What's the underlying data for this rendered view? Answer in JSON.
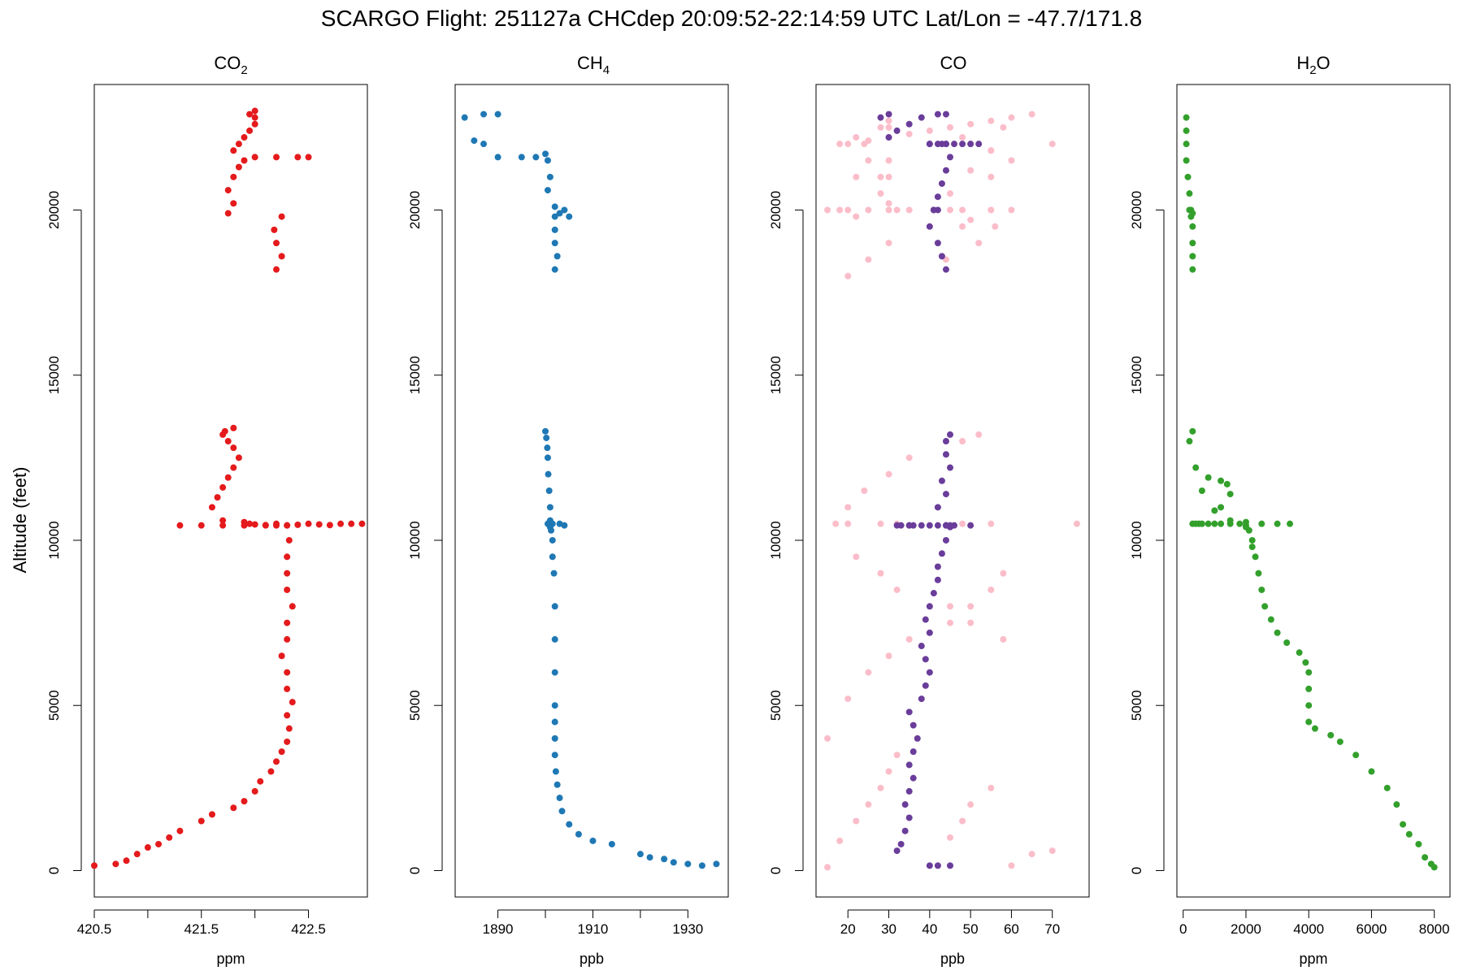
{
  "title": "SCARGO Flight: 251127a  CHCdep  20:09:52-22:14:59 UTC  Lat/Lon = -47.7/171.8",
  "ylabel": "Altitude (feet)",
  "yticks": [
    0,
    5000,
    10000,
    15000,
    20000
  ],
  "chart_data": [
    {
      "type": "scatter",
      "title_main": "CO",
      "title_sub": "2",
      "xlabel": "ppm",
      "xlim": [
        420.5,
        423.05
      ],
      "ylim": [
        -800,
        23800
      ],
      "xticks": [
        420.5,
        421.0,
        421.5,
        422.0,
        422.5
      ],
      "xtick_labels": [
        "420.5",
        "",
        "421.5",
        "",
        "422.5"
      ],
      "series": [
        {
          "color": "#e41a1c",
          "x": [
            420.5,
            420.7,
            420.8,
            420.9,
            421.0,
            421.1,
            421.2,
            421.3,
            421.5,
            421.6,
            421.8,
            421.9,
            422.0,
            422.05,
            422.15,
            422.2,
            422.25,
            422.3,
            422.32,
            422.3,
            422.35,
            422.3,
            422.3,
            422.25,
            422.3,
            422.3,
            422.35,
            422.3,
            422.3,
            422.3,
            422.32,
            421.3,
            421.5,
            421.7,
            421.9,
            422.1,
            422.2,
            422.3,
            421.7,
            421.6,
            421.65,
            421.7,
            421.75,
            421.8,
            421.85,
            421.8,
            421.75,
            421.7,
            421.72,
            421.8,
            421.9,
            421.95,
            422.0,
            422.1,
            422.2,
            422.3,
            422.4,
            422.5,
            422.6,
            422.7,
            422.8,
            422.9,
            423.0,
            422.2,
            422.25,
            422.2,
            422.18,
            422.25,
            421.75,
            421.8,
            421.75,
            421.8,
            421.85,
            421.9,
            422.0,
            422.2,
            422.4,
            422.5,
            421.8,
            421.85,
            421.9,
            421.95,
            422.0,
            422.0,
            421.95,
            422.0
          ],
          "y": [
            150,
            200,
            300,
            500,
            700,
            800,
            1000,
            1200,
            1500,
            1700,
            1900,
            2100,
            2400,
            2700,
            3000,
            3300,
            3600,
            3900,
            4300,
            4700,
            5100,
            5500,
            6000,
            6500,
            7000,
            7500,
            8000,
            8500,
            9000,
            9500,
            10000,
            10450,
            10450,
            10450,
            10450,
            10450,
            10450,
            10450,
            10600,
            11000,
            11300,
            11600,
            11900,
            12200,
            12500,
            12800,
            13000,
            13200,
            13300,
            13400,
            10550,
            10500,
            10480,
            10460,
            10500,
            10450,
            10470,
            10500,
            10480,
            10460,
            10500,
            10500,
            10500,
            18200,
            18600,
            19000,
            19400,
            19800,
            19900,
            20200,
            20600,
            21000,
            21300,
            21500,
            21600,
            21600,
            21600,
            21600,
            21800,
            22000,
            22200,
            22400,
            22600,
            22800,
            22900,
            23000
          ]
        }
      ]
    },
    {
      "type": "scatter",
      "title_main": "CH",
      "title_sub": "4",
      "xlabel": "ppb",
      "xlim": [
        1881,
        1938.5
      ],
      "ylim": [
        -800,
        23800
      ],
      "xticks": [
        1890,
        1900,
        1910,
        1920,
        1930
      ],
      "xtick_labels": [
        "1890",
        "",
        "1910",
        "",
        "1930"
      ],
      "series": [
        {
          "color": "#1f78b4",
          "x": [
            1936,
            1933,
            1930,
            1927,
            1925,
            1922,
            1920,
            1914,
            1910,
            1907,
            1905,
            1903.5,
            1903,
            1902.5,
            1902.2,
            1902,
            1902,
            1902,
            1902,
            1902,
            1902,
            1902,
            1901.8,
            1901.5,
            1901.5,
            1901.2,
            1901,
            1900.5,
            1901.5,
            1903,
            1904,
            1901,
            1901,
            1900.8,
            1900.6,
            1900.5,
            1900.4,
            1900.2,
            1900,
            1902,
            1902.5,
            1902,
            1902,
            1902,
            1903,
            1905,
            1904,
            1902,
            1900.5,
            1901,
            1900.5,
            1900,
            1898,
            1895,
            1890,
            1887,
            1885,
            1883,
            1887,
            1890
          ],
          "y": [
            200,
            150,
            200,
            250,
            350,
            400,
            500,
            800,
            900,
            1100,
            1400,
            1800,
            2200,
            2600,
            3000,
            3500,
            4000,
            4500,
            5000,
            6000,
            7000,
            8000,
            9000,
            9500,
            10000,
            10300,
            10400,
            10500,
            10500,
            10500,
            10450,
            10600,
            11000,
            11500,
            12000,
            12500,
            12800,
            13100,
            13300,
            18200,
            18600,
            19000,
            19400,
            19800,
            19900,
            19800,
            20000,
            20100,
            20600,
            21000,
            21500,
            21700,
            21600,
            21600,
            21600,
            22000,
            22100,
            22800,
            22900,
            22900
          ]
        }
      ]
    },
    {
      "type": "scatter",
      "title_main": "CO",
      "title_sub": "",
      "xlabel": "ppb",
      "xlim": [
        12.2,
        79
      ],
      "ylim": [
        -800,
        23800
      ],
      "xticks": [
        20,
        30,
        40,
        50,
        60,
        70
      ],
      "xtick_labels": [
        "20",
        "30",
        "40",
        "50",
        "60",
        "70"
      ],
      "series": [
        {
          "name": "",
          "color": "#fbbdc9",
          "x": [
            15,
            18,
            22,
            25,
            28,
            30,
            32,
            45,
            48,
            50,
            55,
            60,
            65,
            70,
            15,
            20,
            25,
            30,
            35,
            45,
            50,
            55,
            58,
            17,
            20,
            28,
            32,
            48,
            55,
            76,
            20,
            24,
            30,
            35,
            48,
            52,
            22,
            28,
            32,
            45,
            50,
            58,
            20,
            25,
            30,
            48,
            55,
            18,
            22,
            50,
            56,
            30,
            45,
            28,
            50,
            30,
            55,
            20,
            25,
            30,
            35,
            40,
            45,
            50,
            55,
            60,
            65,
            70,
            22,
            25,
            28,
            32,
            48,
            55,
            60,
            18,
            22,
            28,
            30,
            50,
            55,
            15,
            20,
            25,
            30,
            35,
            45,
            55,
            60,
            24,
            30,
            48,
            58,
            30,
            44,
            52
          ],
          "y": [
            100,
            900,
            1500,
            2000,
            2500,
            3000,
            3500,
            1000,
            1500,
            2000,
            2500,
            150,
            500,
            600,
            4000,
            5200,
            6000,
            6500,
            7000,
            7500,
            8000,
            8500,
            9000,
            10500,
            10500,
            10500,
            10500,
            10500,
            10500,
            10500,
            11000,
            11500,
            12000,
            12500,
            13000,
            13200,
            9500,
            9000,
            8500,
            8000,
            7500,
            7000,
            18000,
            18500,
            19000,
            19500,
            20000,
            20000,
            19800,
            19700,
            19500,
            20200,
            20500,
            21000,
            21200,
            21500,
            21800,
            22000,
            22100,
            22200,
            22300,
            22400,
            22500,
            22600,
            22700,
            22800,
            22900,
            22000,
            21000,
            21500,
            20500,
            20000,
            20000,
            21000,
            21500,
            22000,
            22200,
            22500,
            22700,
            22000,
            21800,
            20000,
            20000,
            20000,
            20000,
            20000,
            20000,
            20000,
            20000,
            22000,
            22500,
            22200,
            22500,
            21000,
            18500,
            19000
          ]
        },
        {
          "name": "",
          "color": "#6a3d9a",
          "x": [
            40,
            42,
            45,
            32,
            33,
            34,
            35,
            34,
            35,
            36,
            35,
            36,
            37,
            36,
            35,
            38,
            39,
            40,
            39,
            38,
            40,
            39,
            40,
            41,
            42,
            42,
            43,
            44,
            45,
            44,
            45,
            46,
            44,
            42,
            40,
            38,
            36,
            35,
            33,
            32,
            35,
            50,
            42,
            44,
            43,
            45,
            44,
            44,
            45,
            44,
            43,
            42,
            40,
            41,
            42,
            41,
            42,
            43,
            44,
            45,
            44,
            40,
            40,
            43,
            42,
            44,
            46,
            48,
            50,
            52,
            30,
            32,
            35,
            38,
            28,
            30,
            42,
            44
          ],
          "y": [
            150,
            150,
            150,
            600,
            800,
            1200,
            1600,
            2000,
            2400,
            2800,
            3200,
            3600,
            4000,
            4400,
            4800,
            5200,
            5600,
            6000,
            6400,
            6800,
            7200,
            7600,
            8000,
            8400,
            8800,
            9200,
            9600,
            10000,
            10400,
            10450,
            10450,
            10450,
            10450,
            10450,
            10450,
            10450,
            10450,
            10450,
            10450,
            10450,
            10450,
            10450,
            11000,
            11400,
            11800,
            12200,
            12600,
            13000,
            13200,
            18200,
            18600,
            19000,
            19500,
            20000,
            20000,
            20000,
            20400,
            20800,
            21200,
            21600,
            22000,
            22000,
            22000,
            22000,
            22000,
            22000,
            22000,
            22000,
            22000,
            22000,
            22200,
            22400,
            22600,
            22800,
            22800,
            22900,
            22900,
            22900
          ]
        }
      ]
    },
    {
      "type": "scatter",
      "title_main": "H",
      "title_sub": "2",
      "title_tail": "O",
      "xlabel": "ppm",
      "xlim": [
        -200,
        8500
      ],
      "ylim": [
        -800,
        23800
      ],
      "xticks": [
        0,
        2000,
        4000,
        6000,
        8000
      ],
      "xtick_labels": [
        "0",
        "2000",
        "4000",
        "6000",
        "8000"
      ],
      "series": [
        {
          "color": "#33a02c",
          "x": [
            8000,
            7900,
            7700,
            7500,
            7200,
            7000,
            6800,
            6500,
            6000,
            5500,
            5000,
            4700,
            4200,
            4000,
            4000,
            4000,
            4000,
            3900,
            3700,
            3300,
            3000,
            2800,
            2600,
            2500,
            2400,
            2300,
            2200,
            2200,
            2100,
            2000,
            2000,
            1800,
            1500,
            1200,
            1000,
            800,
            600,
            500,
            400,
            300,
            2000,
            2500,
            3000,
            3400,
            1500,
            1000,
            600,
            400,
            200,
            1200,
            1500,
            1400,
            1200,
            800,
            300,
            300,
            300,
            300,
            300,
            250,
            200,
            150,
            100,
            100,
            100,
            100,
            300,
            250,
            200
          ],
          "y": [
            100,
            200,
            400,
            800,
            1100,
            1400,
            2000,
            2500,
            3000,
            3500,
            3900,
            4100,
            4300,
            4500,
            5000,
            5500,
            6000,
            6300,
            6600,
            6900,
            7200,
            7600,
            8000,
            8500,
            9000,
            9500,
            9800,
            10000,
            10300,
            10400,
            10450,
            10500,
            10500,
            10500,
            10500,
            10500,
            10500,
            10500,
            10500,
            10500,
            10550,
            10500,
            10500,
            10500,
            10600,
            10900,
            11500,
            12200,
            13000,
            11000,
            11400,
            11700,
            11800,
            11900,
            13300,
            18200,
            18600,
            19000,
            19500,
            20000,
            20500,
            21000,
            21500,
            22000,
            22400,
            22800,
            19900,
            19800,
            20000
          ]
        }
      ]
    }
  ]
}
